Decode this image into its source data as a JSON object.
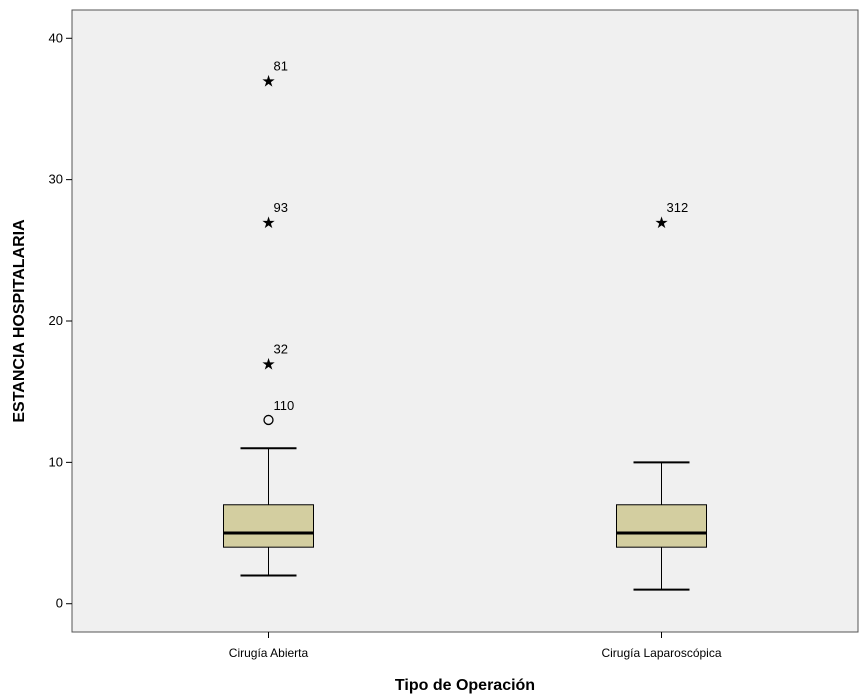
{
  "chart_data": {
    "type": "boxplot",
    "xlabel": "Tipo de Operación",
    "ylabel": "ESTANCIA HOSPITALARIA",
    "ylim": [
      -2,
      42
    ],
    "yticks": [
      0,
      10,
      20,
      30,
      40
    ],
    "grid": false,
    "colors": {
      "plot_bg": "#f0f0f0",
      "box_fill": "#d3cea0",
      "line": "#000000"
    },
    "categories": [
      "Cirugía Abierta",
      "Cirugía Laparoscópica"
    ],
    "boxes": [
      {
        "category": "Cirugía Abierta",
        "whisker_low": 2,
        "q1": 4,
        "median": 5,
        "q3": 7,
        "whisker_high": 11,
        "outliers": [
          {
            "value": 13,
            "label": "110",
            "marker": "circle"
          },
          {
            "value": 17,
            "label": "32",
            "marker": "star"
          },
          {
            "value": 27,
            "label": "93",
            "marker": "star"
          },
          {
            "value": 37,
            "label": "81",
            "marker": "star"
          }
        ]
      },
      {
        "category": "Cirugía Laparoscópica",
        "whisker_low": 1,
        "q1": 4,
        "median": 5,
        "q3": 7,
        "whisker_high": 10,
        "outliers": [
          {
            "value": 27,
            "label": "312",
            "marker": "star"
          }
        ]
      }
    ]
  }
}
